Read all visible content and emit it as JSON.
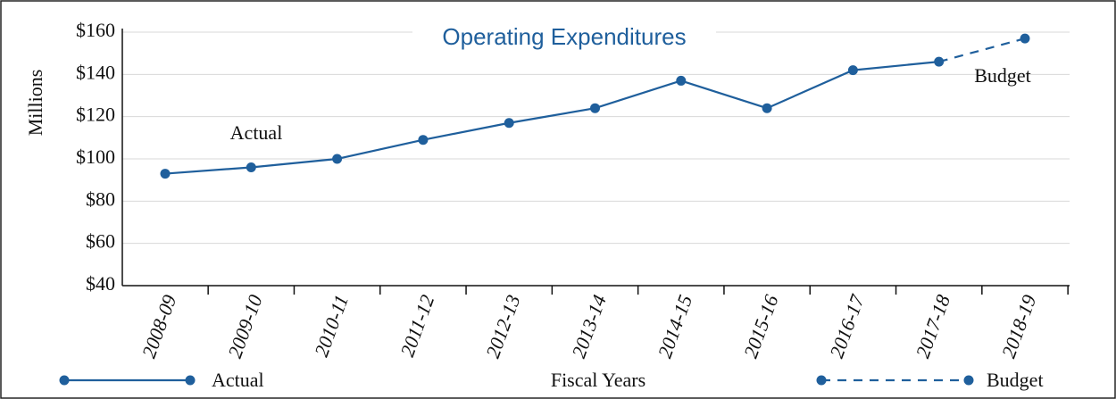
{
  "chart_data": {
    "type": "line",
    "title": "Operating Expenditures",
    "x_label": "Fiscal Years",
    "y_label": "Millions",
    "categories": [
      "2008-09",
      "2009-10",
      "2010-11",
      "2011-12",
      "2012-13",
      "2013-14",
      "2014-15",
      "2015-16",
      "2016-17",
      "2017-18",
      "2018-19"
    ],
    "series": [
      {
        "name": "Actual",
        "color": "#1f5f9c",
        "line_style": "solid",
        "values": [
          93,
          96,
          100,
          109,
          117,
          124,
          137,
          124,
          142,
          146,
          null
        ]
      },
      {
        "name": "Budget",
        "color": "#1f5f9c",
        "line_style": "dashed",
        "values": [
          null,
          null,
          null,
          null,
          null,
          null,
          null,
          null,
          null,
          146,
          157
        ]
      }
    ],
    "annotations": [
      {
        "text": "Actual"
      },
      {
        "text": "Budget"
      }
    ],
    "ylim": [
      40,
      160
    ],
    "yticks": [
      {
        "value": 40,
        "label": "$40"
      },
      {
        "value": 60,
        "label": "$60"
      },
      {
        "value": 80,
        "label": "$80"
      },
      {
        "value": 100,
        "label": "$100"
      },
      {
        "value": 120,
        "label": "$120"
      },
      {
        "value": 140,
        "label": "$140"
      },
      {
        "value": 160,
        "label": "$160"
      }
    ],
    "grid": true
  }
}
